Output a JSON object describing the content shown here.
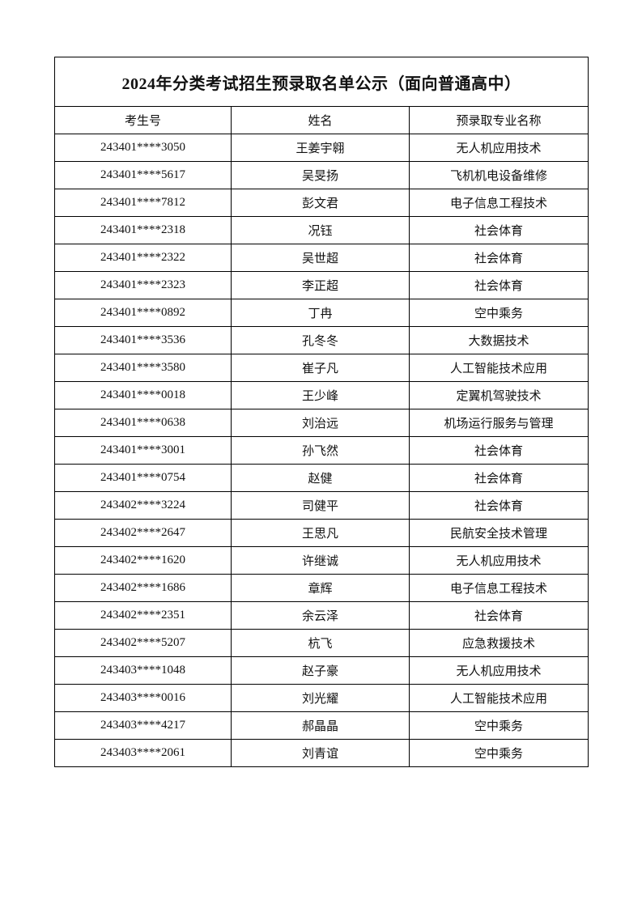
{
  "document": {
    "title": "2024年分类考试招生预录取名单公示（面向普通高中）"
  },
  "table": {
    "columns": [
      "考生号",
      "姓名",
      "预录取专业名称"
    ],
    "rows": [
      [
        "243401****3050",
        "王姜宇翱",
        "无人机应用技术"
      ],
      [
        "243401****5617",
        "吴旻扬",
        "飞机机电设备维修"
      ],
      [
        "243401****7812",
        "彭文君",
        "电子信息工程技术"
      ],
      [
        "243401****2318",
        "况钰",
        "社会体育"
      ],
      [
        "243401****2322",
        "吴世超",
        "社会体育"
      ],
      [
        "243401****2323",
        "李正超",
        "社会体育"
      ],
      [
        "243401****0892",
        "丁冉",
        "空中乘务"
      ],
      [
        "243401****3536",
        "孔冬冬",
        "大数据技术"
      ],
      [
        "243401****3580",
        "崔子凡",
        "人工智能技术应用"
      ],
      [
        "243401****0018",
        "王少峰",
        "定翼机驾驶技术"
      ],
      [
        "243401****0638",
        "刘治远",
        "机场运行服务与管理"
      ],
      [
        "243401****3001",
        "孙飞然",
        "社会体育"
      ],
      [
        "243401****0754",
        "赵健",
        "社会体育"
      ],
      [
        "243402****3224",
        "司健平",
        "社会体育"
      ],
      [
        "243402****2647",
        "王思凡",
        "民航安全技术管理"
      ],
      [
        "243402****1620",
        "许继诚",
        "无人机应用技术"
      ],
      [
        "243402****1686",
        "章辉",
        "电子信息工程技术"
      ],
      [
        "243402****2351",
        "余云泽",
        "社会体育"
      ],
      [
        "243402****5207",
        "杭飞",
        "应急救援技术"
      ],
      [
        "243403****1048",
        "赵子豪",
        "无人机应用技术"
      ],
      [
        "243403****0016",
        "刘光耀",
        "人工智能技术应用"
      ],
      [
        "243403****4217",
        "郝晶晶",
        "空中乘务"
      ],
      [
        "243403****2061",
        "刘青谊",
        "空中乘务"
      ]
    ]
  },
  "colors": {
    "background": "#ffffff",
    "border": "#000000",
    "text": "#111111"
  }
}
